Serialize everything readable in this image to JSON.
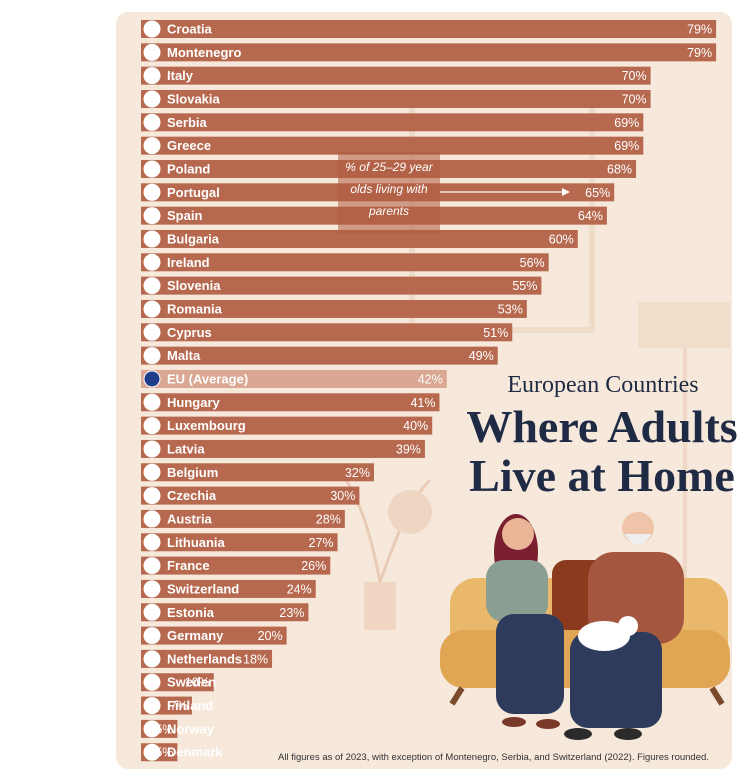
{
  "chart_data": {
    "type": "bar",
    "orientation": "horizontal",
    "title": "Where Adults Live at Home",
    "subtitle": "European Countries",
    "annotation": "% of 25–29 year olds living with parents",
    "note": "All figures as of 2023, with exception of Montenegro, Serbia, and Switzerland (2022). Figures rounded.",
    "value_suffix": "%",
    "xlim": [
      0,
      100
    ],
    "grid": false,
    "categories": [
      "Croatia",
      "Montenegro",
      "Italy",
      "Slovakia",
      "Serbia",
      "Greece",
      "Poland",
      "Portugal",
      "Spain",
      "Bulgaria",
      "Ireland",
      "Slovenia",
      "Romania",
      "Cyprus",
      "Malta",
      "EU (Average)",
      "Hungary",
      "Luxembourg",
      "Latvia",
      "Belgium",
      "Czechia",
      "Austria",
      "Lithuania",
      "France",
      "Switzerland",
      "Estonia",
      "Germany",
      "Netherlands",
      "Sweden",
      "Finland",
      "Norway",
      "Denmark"
    ],
    "values": [
      79,
      79,
      70,
      70,
      69,
      69,
      68,
      65,
      64,
      60,
      56,
      55,
      53,
      51,
      49,
      42,
      41,
      40,
      39,
      32,
      30,
      28,
      27,
      26,
      24,
      23,
      20,
      18,
      10,
      7,
      5,
      5
    ],
    "highlight_category": "EU (Average)",
    "colors": {
      "bar": "#b7694f",
      "highlight_bar": "#d9a792",
      "label": "#ffffff",
      "title": "#1f2a44"
    }
  }
}
